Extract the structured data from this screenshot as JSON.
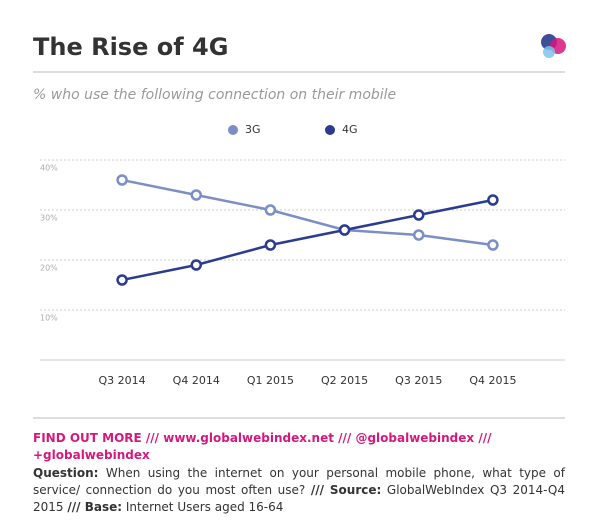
{
  "chart_data": {
    "type": "line",
    "title": "The Rise of 4G",
    "subtitle": "% who use the following connection on their mobile",
    "categories": [
      "Q3 2014",
      "Q4 2014",
      "Q1 2015",
      "Q2 2015",
      "Q3 2015",
      "Q4 2015"
    ],
    "series": [
      {
        "name": "3G",
        "color": "#7b8fc6",
        "values": [
          36,
          33,
          30,
          26,
          25,
          23
        ]
      },
      {
        "name": "4G",
        "color": "#2b3b8f",
        "values": [
          16,
          19,
          23,
          26,
          29,
          32
        ]
      }
    ],
    "ylim": [
      0,
      40
    ],
    "yticks": [
      {
        "value": 10,
        "label": "10%"
      },
      {
        "value": 20,
        "label": "20%"
      },
      {
        "value": 30,
        "label": "30%"
      },
      {
        "value": 40,
        "label": "40%"
      }
    ],
    "grid": true
  },
  "footer": {
    "links": "FIND OUT MORE /// www.globalwebindex.net /// @globalwebindex /// +globalwebindex",
    "question_label": "Question:",
    "question": "When using the internet on your personal mobile phone, what type of service/ connection do you most often use?",
    "source_label": "/// Source:",
    "source": "GlobalWebIndex Q3 2014-Q4 2015",
    "base_label": "/// Base:",
    "base": "Internet Users aged 16-64"
  }
}
